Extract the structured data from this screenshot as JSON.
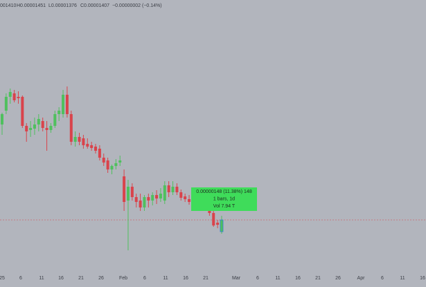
{
  "chart_data": {
    "type": "candlestick",
    "header": [
      "001410",
      "H0.00001451",
      "L0.00001376",
      "C0.00001407",
      "−0.00000002 (−0.14%)"
    ],
    "x_tick_labels": [
      "25",
      "6",
      "11",
      "16",
      "21",
      "26",
      "Feb",
      "6",
      "11",
      "16",
      "21",
      "Mar",
      "6",
      "11",
      "16",
      "21",
      "26",
      "Apr",
      "6",
      "11",
      "16"
    ],
    "ylim": [
      1e-05,
      2.6e-05
    ],
    "up_color": "#4fc05e",
    "down_color": "#d9434b",
    "open": [
      1.88e-05,
      1.96e-05,
      2.04e-05,
      2.06e-05,
      2.04e-05,
      2.04e-05,
      1.872e-05,
      1.848e-05,
      1.856e-05,
      1.88e-05,
      1.9e-05,
      1.86e-05,
      1.848e-05,
      1.872e-05,
      1.94e-05,
      1.94e-05,
      2.052e-05,
      1.94e-05,
      1.78e-05,
      1.808e-05,
      1.8e-05,
      1.768e-05,
      1.76e-05,
      1.752e-05,
      1.74e-05,
      1.688e-05,
      1.672e-05,
      1.62e-05,
      1.64e-05,
      1.66e-05,
      1.58e-05,
      1.44e-05,
      1.52e-05,
      1.46e-05,
      1.44e-05,
      1.4e-05,
      1.46e-05,
      1.44e-05,
      1.472e-05,
      1.452e-05,
      1.44e-05,
      1.528e-05,
      1.488e-05,
      1.52e-05,
      1.488e-05,
      1.464e-05,
      1.448e-05,
      1.432e-05,
      1.44e-05,
      1.416e-05,
      1.424e-05,
      1.392e-05,
      1.368e-05,
      1.312e-05,
      1.26e-05
    ],
    "high": [
      1.948e-05,
      2.06e-05,
      2.088e-05,
      2.08e-05,
      2.072e-05,
      2.048e-05,
      1.888e-05,
      1.9e-05,
      1.92e-05,
      1.94e-05,
      1.92e-05,
      1.9e-05,
      1.888e-05,
      1.96e-05,
      1.98e-05,
      2.08e-05,
      2.1e-05,
      1.96e-05,
      1.84e-05,
      1.832e-05,
      1.82e-05,
      1.8e-05,
      1.78e-05,
      1.768e-05,
      1.76e-05,
      1.712e-05,
      1.688e-05,
      1.648e-05,
      1.68e-05,
      1.7e-05,
      1.62e-05,
      1.56e-05,
      1.54e-05,
      1.48e-05,
      1.48e-05,
      1.472e-05,
      1.48e-05,
      1.488e-05,
      1.5e-05,
      1.512e-05,
      1.552e-05,
      1.552e-05,
      1.552e-05,
      1.54e-05,
      1.504e-05,
      1.48e-05,
      1.472e-05,
      1.46e-05,
      1.456e-05,
      1.44e-05,
      1.44e-05,
      1.408e-05,
      1.4e-05,
      1.328e-05,
      1.352e-05
    ],
    "low": [
      1.82e-05,
      1.94e-05,
      2e-05,
      2.008e-05,
      2e-05,
      1.86e-05,
      1.78e-05,
      1.808e-05,
      1.82e-05,
      1.84e-05,
      1.84e-05,
      1.728e-05,
      1.832e-05,
      1.86e-05,
      1.9e-05,
      1.92e-05,
      1.92e-05,
      1.76e-05,
      1.752e-05,
      1.76e-05,
      1.74e-05,
      1.74e-05,
      1.728e-05,
      1.712e-05,
      1.672e-05,
      1.64e-05,
      1.6e-05,
      1.592e-05,
      1.62e-05,
      1.64e-05,
      1.38e-05,
      1.152e-05,
      1.44e-05,
      1.4e-05,
      1.38e-05,
      1.38e-05,
      1.4e-05,
      1.412e-05,
      1.42e-05,
      1.432e-05,
      1.42e-05,
      1.46e-05,
      1.472e-05,
      1.472e-05,
      1.44e-05,
      1.432e-05,
      1.416e-05,
      1.408e-05,
      1.4e-05,
      1.392e-05,
      1.38e-05,
      1.352e-05,
      1.288e-05,
      1.28e-05,
      1.248e-05
    ],
    "close": [
      1.94e-05,
      2.04e-05,
      2.068e-05,
      2.02e-05,
      2.032e-05,
      1.872e-05,
      1.84e-05,
      1.86e-05,
      1.88e-05,
      1.912e-05,
      1.86e-05,
      1.848e-05,
      1.872e-05,
      1.94e-05,
      1.96e-05,
      2.052e-05,
      1.94e-05,
      1.78e-05,
      1.808e-05,
      1.78e-05,
      1.76e-05,
      1.752e-05,
      1.744e-05,
      1.728e-05,
      1.688e-05,
      1.66e-05,
      1.62e-05,
      1.64e-05,
      1.656e-05,
      1.672e-05,
      1.432e-05,
      1.52e-05,
      1.46e-05,
      1.432e-05,
      1.4e-05,
      1.46e-05,
      1.44e-05,
      1.472e-05,
      1.452e-05,
      1.48e-05,
      1.528e-05,
      1.488e-05,
      1.52e-05,
      1.488e-05,
      1.456e-05,
      1.448e-05,
      1.432e-05,
      1.44e-05,
      1.416e-05,
      1.424e-05,
      1.392e-05,
      1.368e-05,
      1.296e-05,
      1.3e-05,
      1.328e-05
    ],
    "last_price": 1.328e-05,
    "measure": {
      "lines": [
        "0.00000148 (11.38%) 148",
        "1 bars, 1d",
        "Vol 7.94 T"
      ],
      "color": "#3fdc5a"
    }
  }
}
